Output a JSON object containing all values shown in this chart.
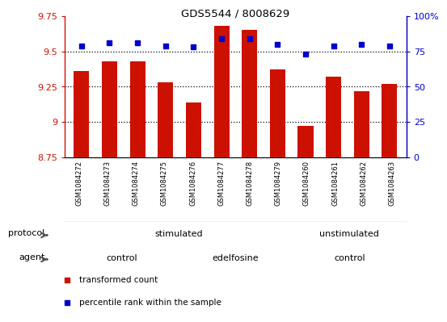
{
  "title": "GDS5544 / 8008629",
  "samples": [
    "GSM1084272",
    "GSM1084273",
    "GSM1084274",
    "GSM1084275",
    "GSM1084276",
    "GSM1084277",
    "GSM1084278",
    "GSM1084279",
    "GSM1084260",
    "GSM1084261",
    "GSM1084262",
    "GSM1084263"
  ],
  "red_values": [
    9.36,
    9.43,
    9.43,
    9.28,
    9.14,
    9.68,
    9.65,
    9.37,
    8.97,
    9.32,
    9.22,
    9.27
  ],
  "blue_values": [
    79,
    81,
    81,
    79,
    78,
    84,
    84,
    80,
    73,
    79,
    80,
    79
  ],
  "ylim_left": [
    8.75,
    9.75
  ],
  "ylim_right": [
    0,
    100
  ],
  "yticks_left": [
    8.75,
    9.0,
    9.25,
    9.5,
    9.75
  ],
  "ytick_labels_left": [
    "8.75",
    "9",
    "9.25",
    "9.5",
    "9.75"
  ],
  "yticks_right": [
    0,
    25,
    50,
    75,
    100
  ],
  "ytick_labels_right": [
    "0",
    "25",
    "50",
    "75",
    "100%"
  ],
  "bar_color": "#cc1100",
  "dot_color": "#0000cc",
  "bar_bottom": 8.75,
  "grid_lines": [
    9.0,
    9.25,
    9.5
  ],
  "protocol_groups": [
    {
      "label": "stimulated",
      "start": 0,
      "end": 8,
      "color": "#b3f0b3"
    },
    {
      "label": "unstimulated",
      "start": 8,
      "end": 12,
      "color": "#44dd44"
    }
  ],
  "agent_groups": [
    {
      "label": "control",
      "start": 0,
      "end": 4,
      "color": "#f0b3f0"
    },
    {
      "label": "edelfosine",
      "start": 4,
      "end": 8,
      "color": "#cc66cc"
    },
    {
      "label": "control",
      "start": 8,
      "end": 12,
      "color": "#f0b3f0"
    }
  ],
  "legend_red_label": "transformed count",
  "legend_blue_label": "percentile rank within the sample",
  "protocol_label": "protocol",
  "agent_label": "agent",
  "sample_bg_color": "#cccccc",
  "sample_sep_color": "#ffffff"
}
